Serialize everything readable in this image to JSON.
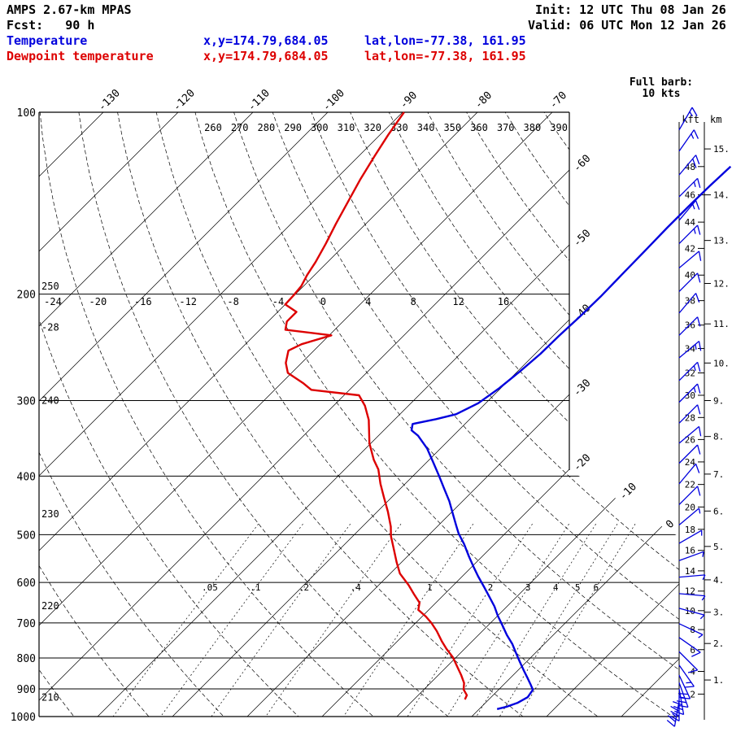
{
  "header": {
    "model": "AMPS 2.67-km MPAS",
    "fcst": "Fcst:   90 h",
    "init": "Init: 12 UTC Thu 08 Jan 26",
    "valid": "Valid: 06 UTC Mon 12 Jan 26",
    "full_barb_line1": "Full barb:",
    "full_barb_line2": "10 kts"
  },
  "legend": {
    "temperature": {
      "label": "Temperature",
      "xy": "x,y=174.79,684.05",
      "latlon": "lat,lon=-77.38, 161.95"
    },
    "dewpoint": {
      "label": "Dewpoint temperature",
      "xy": "x,y=174.79,684.05",
      "latlon": "lat,lon=-77.38, 161.95"
    }
  },
  "colors": {
    "temperature": "#0000dd",
    "dewpoint": "#dd0000",
    "wind_barbs": "#0000dd",
    "grid": "#000000",
    "background": "#ffffff"
  },
  "chart_data": {
    "type": "skewt-log-p-sounding",
    "title": "AMPS 2.67-km MPAS 90 h forecast sounding",
    "pressure_axis_hpa": [
      100,
      200,
      300,
      400,
      500,
      600,
      700,
      800,
      900,
      1000
    ],
    "isotherm_step_c": 10,
    "isotherm_labels_top_c": [
      -130,
      -120,
      -110,
      -100,
      -90,
      -80,
      -70
    ],
    "isotherm_labels_right_c": [
      -60,
      -50,
      -40,
      -30,
      -20,
      -10,
      0
    ],
    "potential_temp_labels_k": [
      260,
      270,
      280,
      290,
      300,
      310,
      320,
      330,
      340,
      350,
      360,
      370,
      380,
      390
    ],
    "temp_scale_200hpa_c": [
      -24,
      -20,
      -16,
      -12,
      -8,
      -4,
      0,
      4,
      8,
      12,
      16
    ],
    "left_edge_labels": [
      {
        "text": "250",
        "p": 194
      },
      {
        "text": "-28",
        "p": 227
      },
      {
        "text": "240",
        "p": 300
      },
      {
        "text": "230",
        "p": 462
      },
      {
        "text": "220",
        "p": 656
      },
      {
        "text": "210",
        "p": 930
      }
    ],
    "mixing_ratio_lines": [
      {
        "value": 0.05,
        "label": ".05"
      },
      {
        "value": 0.1,
        "label": ".1"
      },
      {
        "value": 0.2,
        "label": ".2"
      },
      {
        "value": 0.4,
        "label": ".4"
      },
      {
        "value": 1,
        "label": "1"
      },
      {
        "value": 2,
        "label": "2"
      },
      {
        "value": 3,
        "label": "3"
      },
      {
        "value": 4,
        "label": "4"
      },
      {
        "value": 5,
        "label": "5"
      },
      {
        "value": 6,
        "label": "6"
      }
    ],
    "altitude_scale": {
      "kft_header": "kft",
      "km_header": "km",
      "kft_ticks": [
        {
          "label": "48",
          "p": 123
        },
        {
          "label": "46",
          "p": 137
        },
        {
          "label": "44",
          "p": 152
        },
        {
          "label": "42",
          "p": 168
        },
        {
          "label": "40",
          "p": 186
        },
        {
          "label": "38",
          "p": 205
        },
        {
          "label": "36",
          "p": 225
        },
        {
          "label": "34",
          "p": 246
        },
        {
          "label": "32",
          "p": 270
        },
        {
          "label": "30",
          "p": 294
        },
        {
          "label": "28",
          "p": 320
        },
        {
          "label": "26",
          "p": 348
        },
        {
          "label": "24",
          "p": 379
        },
        {
          "label": "22",
          "p": 413
        },
        {
          "label": "20",
          "p": 450
        },
        {
          "label": "18",
          "p": 490
        },
        {
          "label": "16",
          "p": 531
        },
        {
          "label": "14",
          "p": 574
        },
        {
          "label": "12",
          "p": 620
        },
        {
          "label": "10",
          "p": 668
        },
        {
          "label": "8",
          "p": 718
        },
        {
          "label": "6",
          "p": 775
        },
        {
          "label": "4",
          "p": 842
        },
        {
          "label": "2",
          "p": 918
        }
      ],
      "km_ticks": [
        {
          "label": "15.",
          "p": 115
        },
        {
          "label": "14.",
          "p": 137
        },
        {
          "label": "13.",
          "p": 163
        },
        {
          "label": "12.",
          "p": 192
        },
        {
          "label": "11.",
          "p": 224
        },
        {
          "label": "10.",
          "p": 260
        },
        {
          "label": "9.",
          "p": 300
        },
        {
          "label": "8.",
          "p": 344
        },
        {
          "label": "7.",
          "p": 397
        },
        {
          "label": "6.",
          "p": 457
        },
        {
          "label": "5.",
          "p": 523
        },
        {
          "label": "4.",
          "p": 594
        },
        {
          "label": "3.",
          "p": 672
        },
        {
          "label": "2.",
          "p": 757
        },
        {
          "label": "1.",
          "p": 870
        }
      ]
    },
    "temperature_curve_p_c": [
      [
        123,
        -38.9
      ],
      [
        132,
        -39.1
      ],
      [
        142,
        -39.2
      ],
      [
        155,
        -39.2
      ],
      [
        169,
        -39.1
      ],
      [
        186,
        -39.0
      ],
      [
        202,
        -38.9
      ],
      [
        218,
        -39.0
      ],
      [
        234,
        -39.2
      ],
      [
        251,
        -39.3
      ],
      [
        269,
        -39.7
      ],
      [
        286,
        -40.2
      ],
      [
        303,
        -41.0
      ],
      [
        316,
        -42.5
      ],
      [
        322,
        -44.5
      ],
      [
        328,
        -47.0
      ],
      [
        336,
        -46.3
      ],
      [
        343,
        -44.7
      ],
      [
        360,
        -41.8
      ],
      [
        379,
        -39.2
      ],
      [
        400,
        -36.5
      ],
      [
        420,
        -34.1
      ],
      [
        440,
        -31.8
      ],
      [
        461,
        -29.7
      ],
      [
        483,
        -27.6
      ],
      [
        498,
        -26.2
      ],
      [
        518,
        -24.1
      ],
      [
        543,
        -21.8
      ],
      [
        566,
        -19.7
      ],
      [
        586,
        -17.9
      ],
      [
        610,
        -15.7
      ],
      [
        633,
        -13.7
      ],
      [
        657,
        -11.7
      ],
      [
        681,
        -10.0
      ],
      [
        705,
        -8.2
      ],
      [
        733,
        -6.2
      ],
      [
        758,
        -4.3
      ],
      [
        783,
        -2.7
      ],
      [
        810,
        -1.0
      ],
      [
        839,
        0.8
      ],
      [
        865,
        2.4
      ],
      [
        887,
        3.7
      ],
      [
        903,
        4.6
      ],
      [
        929,
        4.9
      ],
      [
        949,
        4.3
      ],
      [
        963,
        3.4
      ],
      [
        972,
        2.4
      ]
    ],
    "dewpoint_curve_p_c": [
      [
        100,
        -89.8
      ],
      [
        109,
        -88.9
      ],
      [
        118,
        -87.9
      ],
      [
        129,
        -86.7
      ],
      [
        141,
        -85.3
      ],
      [
        153,
        -84.0
      ],
      [
        165,
        -82.7
      ],
      [
        177,
        -81.6
      ],
      [
        186,
        -81.0
      ],
      [
        194,
        -80.3
      ],
      [
        201,
        -80.1
      ],
      [
        208,
        -80.0
      ],
      [
        214,
        -77.5
      ],
      [
        222,
        -77.5
      ],
      [
        229,
        -76.6
      ],
      [
        234,
        -69.7
      ],
      [
        242,
        -72.5
      ],
      [
        248,
        -73.4
      ],
      [
        260,
        -72.1
      ],
      [
        270,
        -70.5
      ],
      [
        281,
        -67.0
      ],
      [
        288,
        -65.1
      ],
      [
        294,
        -58.0
      ],
      [
        306,
        -55.8
      ],
      [
        323,
        -53.4
      ],
      [
        353,
        -50.2
      ],
      [
        376,
        -47.4
      ],
      [
        390,
        -45.5
      ],
      [
        412,
        -43.3
      ],
      [
        434,
        -41.0
      ],
      [
        458,
        -38.6
      ],
      [
        485,
        -36.2
      ],
      [
        503,
        -34.9
      ],
      [
        527,
        -32.9
      ],
      [
        555,
        -30.7
      ],
      [
        580,
        -28.7
      ],
      [
        606,
        -26.0
      ],
      [
        627,
        -24.1
      ],
      [
        648,
        -22.2
      ],
      [
        666,
        -21.4
      ],
      [
        683,
        -19.5
      ],
      [
        700,
        -17.9
      ],
      [
        722,
        -16.1
      ],
      [
        750,
        -14.1
      ],
      [
        773,
        -12.4
      ],
      [
        797,
        -10.5
      ],
      [
        827,
        -8.6
      ],
      [
        853,
        -7.0
      ],
      [
        880,
        -5.5
      ],
      [
        902,
        -4.7
      ],
      [
        922,
        -3.5
      ],
      [
        937,
        -3.2
      ]
    ],
    "full_barb_kts": 10,
    "wind_barbs_p_kts_dir": [
      [
        107,
        15,
        30
      ],
      [
        116,
        15,
        35
      ],
      [
        127,
        20,
        40
      ],
      [
        138,
        15,
        45
      ],
      [
        151,
        15,
        40
      ],
      [
        165,
        15,
        45
      ],
      [
        181,
        10,
        50
      ],
      [
        198,
        10,
        45
      ],
      [
        215,
        10,
        40
      ],
      [
        234,
        10,
        45
      ],
      [
        255,
        15,
        50
      ],
      [
        278,
        15,
        45
      ],
      [
        302,
        15,
        45
      ],
      [
        327,
        10,
        45
      ],
      [
        353,
        10,
        50
      ],
      [
        381,
        10,
        45
      ],
      [
        412,
        10,
        40
      ],
      [
        446,
        10,
        45
      ],
      [
        482,
        5,
        50
      ],
      [
        517,
        5,
        60
      ],
      [
        552,
        5,
        70
      ],
      [
        588,
        5,
        85
      ],
      [
        626,
        5,
        95
      ],
      [
        662,
        5,
        105
      ],
      [
        702,
        5,
        115
      ],
      [
        740,
        10,
        125
      ],
      [
        781,
        10,
        135
      ],
      [
        822,
        15,
        145
      ],
      [
        854,
        20,
        155
      ],
      [
        879,
        25,
        160
      ],
      [
        900,
        30,
        170
      ],
      [
        921,
        30,
        180
      ],
      [
        942,
        25,
        190
      ]
    ]
  }
}
